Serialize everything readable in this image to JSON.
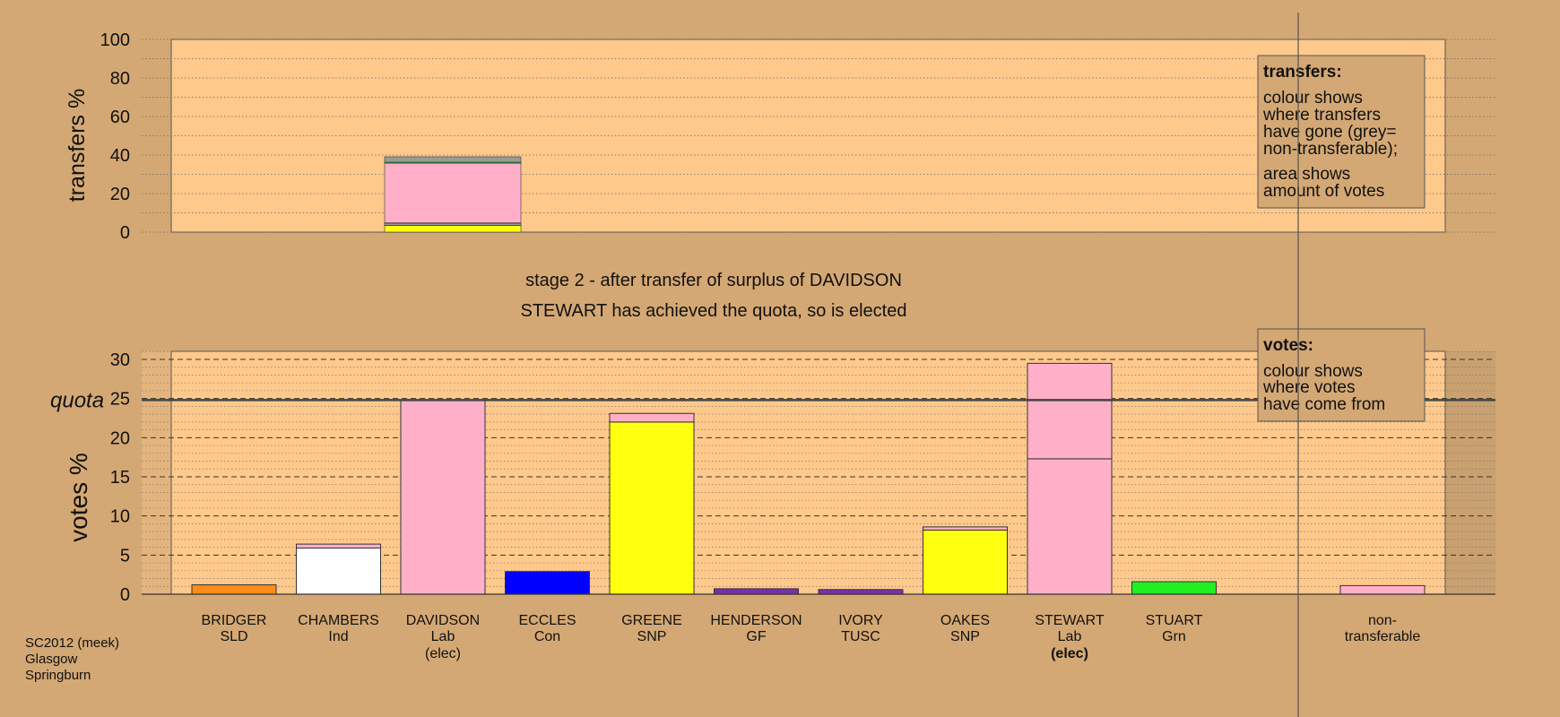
{
  "colors": {
    "page_bg": "#d4a874",
    "panel_bg": "#ffc98c",
    "shade_left": "#e4b47e",
    "shade_right": "#c9a070",
    "box_bg": "#d4a874",
    "party": {
      "SLD": "#ff8c1a",
      "Ind": "#ffffff",
      "Lab": "#ffb0c8",
      "Con": "#0000ff",
      "SNP": "#ffff10",
      "GF": "#7b2fa6",
      "TUSC": "#7b2fa6",
      "Grn": "#22ee22",
      "nontransferable": "#9a9a9a"
    }
  },
  "stage_text": {
    "line1": "stage 2 - after transfer of surplus of DAVIDSON",
    "line2": "STEWART has achieved the quota, so is elected"
  },
  "legend_transfers": {
    "title": "transfers:",
    "lines": [
      "colour shows",
      "where transfers",
      "have gone (grey=",
      "non-transferable);"
    ],
    "lines2": [
      "area shows",
      "amount of votes"
    ]
  },
  "legend_votes": {
    "title": "votes:",
    "lines": [
      "colour shows",
      "where votes",
      "have come from"
    ]
  },
  "footer": [
    "SC2012 (meek)",
    "Glasgow",
    "Springburn"
  ],
  "quota_label": "quota",
  "chart_data": [
    {
      "type": "bar",
      "ylabel": "transfers %",
      "ylim": [
        0,
        100
      ],
      "yticks": [
        "0",
        "20",
        "40",
        "60",
        "80",
        "100"
      ],
      "transfer_from": "DAVIDSON",
      "segments": [
        {
          "to": "SNP",
          "value": 3.5
        },
        {
          "to": "Con",
          "value": 0.3
        },
        {
          "to": "Ind",
          "value": 0.7
        },
        {
          "to": "GF",
          "value": 0.3
        },
        {
          "to": "Lab",
          "value": 31.0
        },
        {
          "to": "Grn",
          "value": 0.5
        },
        {
          "to": "nontransferable",
          "value": 2.8
        }
      ]
    },
    {
      "type": "bar",
      "ylabel": "votes %",
      "ylim": [
        0,
        30
      ],
      "yticks": [
        "0",
        "5",
        "10",
        "15",
        "20",
        "25",
        "30"
      ],
      "quota": 24.8,
      "candidates": [
        {
          "name": "BRIDGER",
          "party": "SLD",
          "elected": "",
          "segments": [
            {
              "p": "SLD",
              "v": 1.2
            }
          ]
        },
        {
          "name": "CHAMBERS",
          "party": "Ind",
          "elected": "",
          "segments": [
            {
              "p": "Ind",
              "v": 5.9
            },
            {
              "p": "Lab",
              "v": 0.5
            }
          ]
        },
        {
          "name": "DAVIDSON",
          "party": "Lab",
          "elected": "(elec)",
          "segments": [
            {
              "p": "Lab",
              "v": 24.8
            }
          ]
        },
        {
          "name": "ECCLES",
          "party": "Con",
          "elected": "",
          "segments": [
            {
              "p": "Con",
              "v": 2.9
            }
          ]
        },
        {
          "name": "GREENE",
          "party": "SNP",
          "elected": "",
          "segments": [
            {
              "p": "SNP",
              "v": 22.0
            },
            {
              "p": "Lab",
              "v": 1.1
            }
          ]
        },
        {
          "name": "HENDERSON",
          "party": "GF",
          "elected": "",
          "segments": [
            {
              "p": "GF",
              "v": 0.7
            }
          ]
        },
        {
          "name": "IVORY",
          "party": "TUSC",
          "elected": "",
          "segments": [
            {
              "p": "TUSC",
              "v": 0.6
            }
          ]
        },
        {
          "name": "OAKES",
          "party": "SNP",
          "elected": "",
          "segments": [
            {
              "p": "SNP",
              "v": 8.2
            },
            {
              "p": "Lab",
              "v": 0.4
            }
          ]
        },
        {
          "name": "STEWART",
          "party": "Lab",
          "elected": "(elec)",
          "segments": [
            {
              "p": "Lab",
              "v": 17.3
            },
            {
              "p": "Lab",
              "v": 12.2
            }
          ]
        },
        {
          "name": "STUART",
          "party": "Grn",
          "elected": "",
          "segments": [
            {
              "p": "Grn",
              "v": 1.6
            }
          ]
        }
      ],
      "nontransferable": {
        "label1": "non-",
        "label2": "transferable",
        "segments": [
          {
            "p": "Lab",
            "v": 1.1
          }
        ]
      }
    }
  ]
}
